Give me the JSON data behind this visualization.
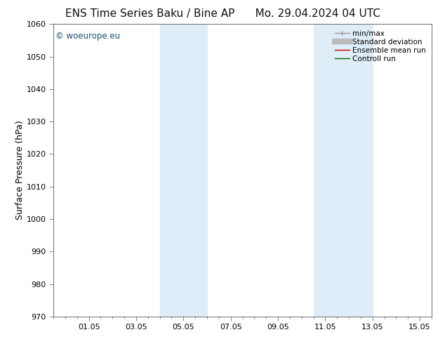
{
  "title_left": "ENS Time Series Baku / Bine AP",
  "title_right": "Mo. 29.04.2024 04 UTC",
  "ylabel": "Surface Pressure (hPa)",
  "ylim": [
    970,
    1060
  ],
  "yticks": [
    970,
    980,
    990,
    1000,
    1010,
    1020,
    1030,
    1040,
    1050,
    1060
  ],
  "xlim_start": -0.5,
  "xlim_end": 15.5,
  "xtick_labels": [
    "01.05",
    "03.05",
    "05.05",
    "07.05",
    "09.05",
    "11.05",
    "13.05",
    "15.05"
  ],
  "xtick_positions": [
    1,
    3,
    5,
    7,
    9,
    11,
    13,
    15
  ],
  "shaded_regions": [
    {
      "xmin": 4.0,
      "xmax": 6.0,
      "color": "#deedf8"
    },
    {
      "xmin": 10.5,
      "xmax": 13.0,
      "color": "#deedf8"
    }
  ],
  "watermark_text": "© woeurope.eu",
  "watermark_color": "#1a5276",
  "legend_entries": [
    {
      "label": "min/max",
      "color": "#999999",
      "lw": 1.0,
      "style": "minmax"
    },
    {
      "label": "Standard deviation",
      "color": "#bbbbbb",
      "lw": 6,
      "style": "thick"
    },
    {
      "label": "Ensemble mean run",
      "color": "#cc0000",
      "lw": 1.0,
      "style": "solid"
    },
    {
      "label": "Controll run",
      "color": "#006600",
      "lw": 1.0,
      "style": "solid"
    }
  ],
  "background_color": "#ffffff",
  "title_fontsize": 11,
  "axis_label_fontsize": 9,
  "tick_fontsize": 8,
  "legend_fontsize": 7.5
}
